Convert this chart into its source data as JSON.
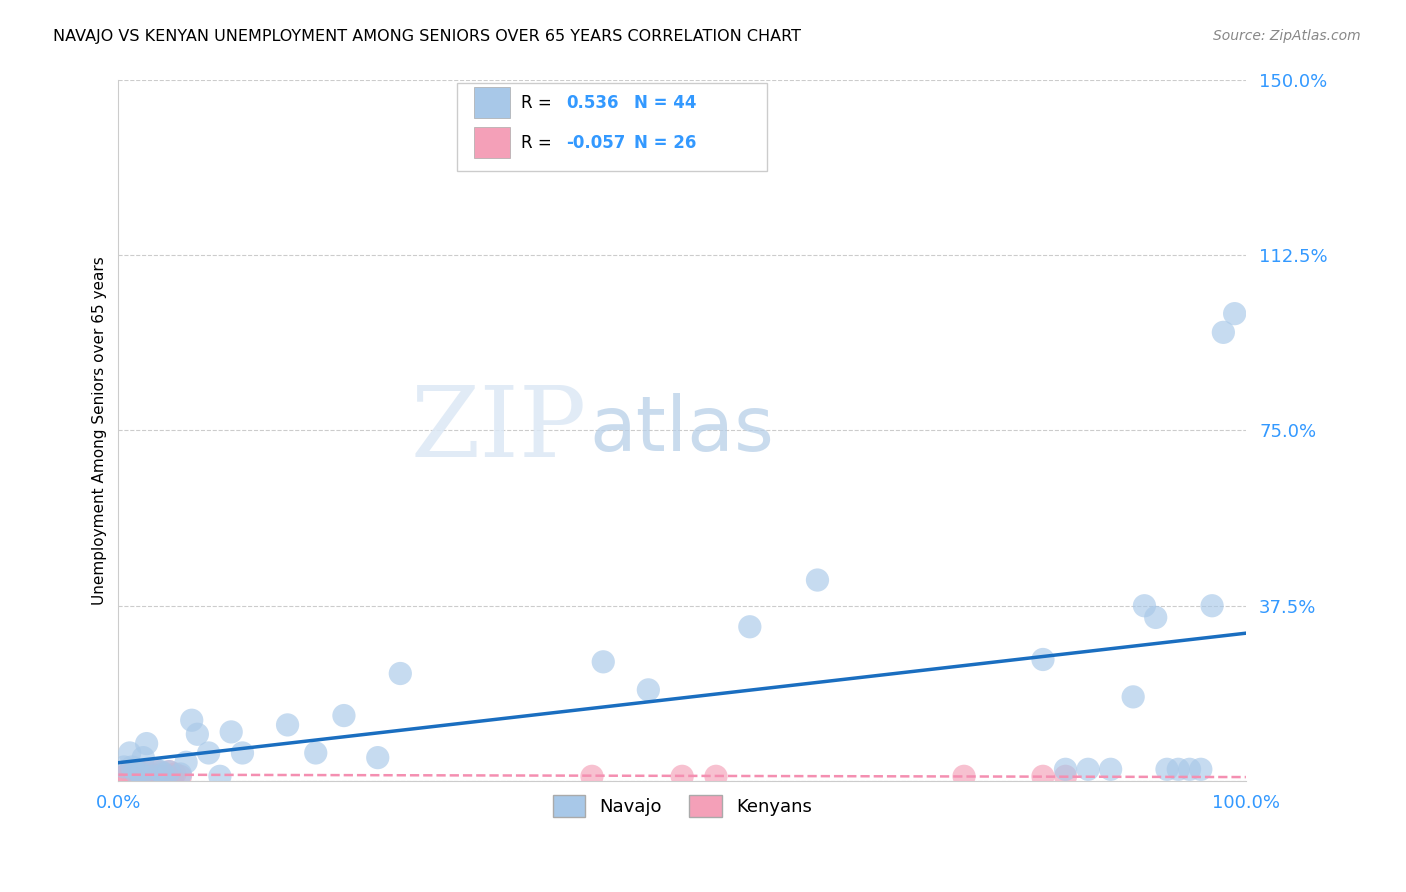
{
  "title": "NAVAJO VS KENYAN UNEMPLOYMENT AMONG SENIORS OVER 65 YEARS CORRELATION CHART",
  "source": "Source: ZipAtlas.com",
  "ylabel_label": "Unemployment Among Seniors over 65 years",
  "navajo_R": 0.536,
  "navajo_N": 44,
  "kenyan_R": -0.057,
  "kenyan_N": 26,
  "navajo_color": "#a8c8e8",
  "kenyan_color": "#f4a0b8",
  "navajo_line_color": "#1a6ec0",
  "kenyan_line_color": "#f48fb1",
  "watermark_ZIP": "ZIP",
  "watermark_atlas": "atlas",
  "navajo_x": [
    0.005,
    0.01,
    0.012,
    0.015,
    0.018,
    0.02,
    0.022,
    0.025,
    0.03,
    0.033,
    0.038,
    0.04,
    0.045,
    0.055,
    0.06,
    0.065,
    0.07,
    0.08,
    0.09,
    0.1,
    0.11,
    0.15,
    0.175,
    0.2,
    0.23,
    0.25,
    0.43,
    0.47,
    0.56,
    0.62,
    0.82,
    0.84,
    0.86,
    0.88,
    0.9,
    0.91,
    0.92,
    0.93,
    0.94,
    0.95,
    0.96,
    0.97,
    0.98,
    0.99
  ],
  "navajo_y": [
    0.03,
    0.06,
    0.03,
    0.02,
    0.02,
    0.015,
    0.05,
    0.08,
    0.01,
    0.025,
    0.02,
    0.015,
    0.02,
    0.015,
    0.04,
    0.13,
    0.1,
    0.06,
    0.01,
    0.105,
    0.06,
    0.12,
    0.06,
    0.14,
    0.05,
    0.23,
    0.255,
    0.195,
    0.33,
    0.43,
    0.26,
    0.025,
    0.025,
    0.025,
    0.18,
    0.375,
    0.35,
    0.025,
    0.025,
    0.025,
    0.025,
    0.375,
    0.96,
    1.0
  ],
  "kenyan_x": [
    0.005,
    0.008,
    0.01,
    0.012,
    0.015,
    0.018,
    0.02,
    0.022,
    0.025,
    0.028,
    0.03,
    0.033,
    0.035,
    0.038,
    0.04,
    0.043,
    0.045,
    0.048,
    0.05,
    0.055,
    0.42,
    0.5,
    0.53,
    0.75,
    0.82,
    0.84
  ],
  "kenyan_y": [
    0.01,
    0.015,
    0.01,
    0.015,
    0.01,
    0.02,
    0.015,
    0.01,
    0.02,
    0.01,
    0.015,
    0.01,
    0.02,
    0.01,
    0.015,
    0.01,
    0.02,
    0.01,
    0.015,
    0.01,
    0.01,
    0.01,
    0.01,
    0.01,
    0.01,
    0.01
  ],
  "xmin": 0.0,
  "xmax": 1.0,
  "ymin": 0.0,
  "ymax": 1.5,
  "ytick_vals": [
    0.0,
    0.375,
    0.75,
    1.125,
    1.5
  ],
  "ytick_labels": [
    "",
    "37.5%",
    "75.0%",
    "112.5%",
    "150.0%"
  ],
  "xtick_vals": [
    0.0,
    1.0
  ],
  "xtick_labels": [
    "0.0%",
    "100.0%"
  ],
  "tick_color": "#3399ff",
  "grid_color": "#cccccc",
  "background": "#ffffff"
}
